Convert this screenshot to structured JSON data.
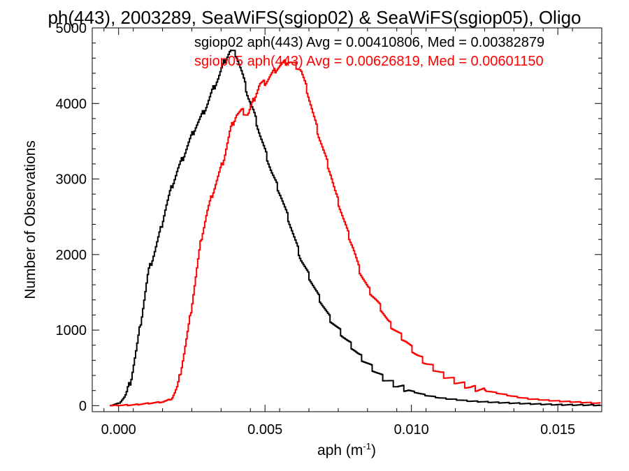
{
  "chart_data": {
    "type": "line",
    "title": "ph(443), 2003289, SeaWiFS(sgiop02) & SeaWiFS(sgiop05), Oligo",
    "xlabel": "aph (m",
    "xlabel_sup": "-1",
    "xlabel_close": ")",
    "ylabel": "Number of Observations",
    "xlim": [
      -0.0009,
      0.0165
    ],
    "ylim": [
      -80,
      5000
    ],
    "x_ticks": [
      0.0,
      0.005,
      0.01,
      0.015
    ],
    "x_tick_labels": [
      "0.000",
      "0.005",
      "0.010",
      "0.015"
    ],
    "y_ticks": [
      0,
      1000,
      2000,
      3000,
      4000,
      5000
    ],
    "y_tick_labels": [
      "0",
      "1000",
      "2000",
      "3000",
      "4000",
      "5000"
    ],
    "legend_placement": "top-right",
    "series": [
      {
        "name": "sgiop02 aph(443) Avg = 0.00410806, Med = 0.00382879",
        "color": "#000000",
        "x": [
          -0.0003,
          0.0,
          0.0002,
          0.0004,
          0.0006,
          0.0008,
          0.001,
          0.0012,
          0.0014,
          0.0016,
          0.0018,
          0.002,
          0.0022,
          0.0024,
          0.0026,
          0.0028,
          0.003,
          0.0032,
          0.0034,
          0.0036,
          0.0038,
          0.004,
          0.0042,
          0.0044,
          0.0046,
          0.0048,
          0.005,
          0.0052,
          0.0055,
          0.0058,
          0.006,
          0.0062,
          0.0065,
          0.0068,
          0.007,
          0.0072,
          0.0075,
          0.0078,
          0.008,
          0.0082,
          0.0085,
          0.0088,
          0.009,
          0.0095,
          0.01,
          0.0105,
          0.011,
          0.0115,
          0.012,
          0.013,
          0.014,
          0.015,
          0.0165
        ],
        "values": [
          0,
          30,
          120,
          330,
          760,
          1250,
          1770,
          2020,
          2300,
          2630,
          2900,
          3120,
          3300,
          3500,
          3680,
          3820,
          3980,
          4180,
          4350,
          4560,
          4700,
          4650,
          4400,
          4100,
          3880,
          3600,
          3350,
          3100,
          2800,
          2450,
          2200,
          1950,
          1700,
          1450,
          1300,
          1150,
          1000,
          850,
          760,
          660,
          550,
          440,
          370,
          260,
          190,
          135,
          100,
          80,
          60,
          40,
          25,
          12,
          5
        ]
      },
      {
        "name": "sgiop05 aph(443) Avg = 0.00626819, Med = 0.00601150",
        "color": "#ff0000",
        "x": [
          -0.0003,
          0.0005,
          0.001,
          0.0015,
          0.0018,
          0.002,
          0.0022,
          0.0024,
          0.0026,
          0.0028,
          0.003,
          0.0032,
          0.0034,
          0.0036,
          0.0038,
          0.004,
          0.0042,
          0.0044,
          0.0046,
          0.0048,
          0.005,
          0.0052,
          0.0054,
          0.0056,
          0.0058,
          0.006,
          0.0062,
          0.0064,
          0.0066,
          0.0068,
          0.007,
          0.0072,
          0.0074,
          0.0076,
          0.0078,
          0.008,
          0.0082,
          0.0085,
          0.0088,
          0.009,
          0.0092,
          0.0095,
          0.0098,
          0.01,
          0.0102,
          0.0105,
          0.0108,
          0.011,
          0.0115,
          0.012,
          0.0125,
          0.013,
          0.0135,
          0.014,
          0.015,
          0.016,
          0.0165
        ],
        "values": [
          0,
          10,
          30,
          50,
          90,
          250,
          650,
          1100,
          1650,
          2200,
          2550,
          2820,
          3050,
          3300,
          3650,
          3850,
          3900,
          3850,
          4050,
          4250,
          4280,
          4380,
          4470,
          4530,
          4560,
          4510,
          4450,
          4200,
          3900,
          3600,
          3350,
          3100,
          2800,
          2550,
          2300,
          2080,
          1800,
          1550,
          1380,
          1250,
          1100,
          970,
          850,
          750,
          660,
          560,
          480,
          420,
          320,
          240,
          200,
          160,
          120,
          90,
          60,
          40,
          30
        ]
      }
    ]
  }
}
